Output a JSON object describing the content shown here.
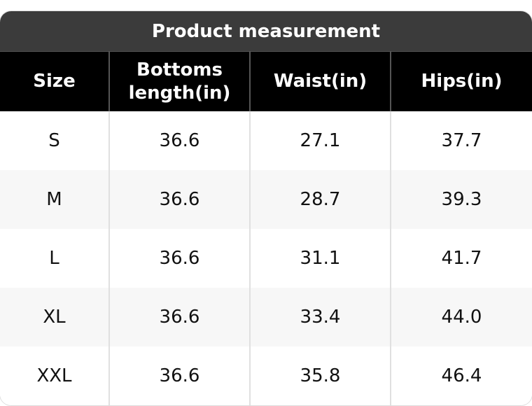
{
  "title": "Product measurement",
  "table": {
    "header": [
      "Size",
      "Bottoms length(in)",
      "Waist(in)",
      "Hips(in)"
    ],
    "rows": [
      [
        "S",
        "36.6",
        "27.1",
        "37.7"
      ],
      [
        "M",
        "36.6",
        "28.7",
        "39.3"
      ],
      [
        "L",
        "36.6",
        "31.1",
        "41.7"
      ],
      [
        "XL",
        "36.6",
        "33.4",
        "44.0"
      ],
      [
        "XXL",
        "36.6",
        "35.8",
        "46.4"
      ]
    ]
  }
}
